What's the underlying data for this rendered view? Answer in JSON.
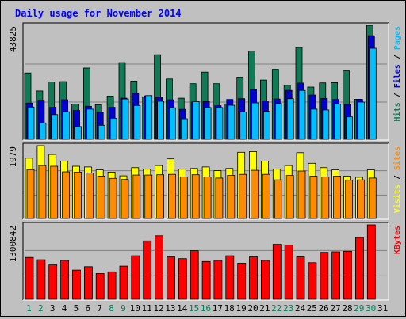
{
  "chart_data": {
    "type": "bar",
    "title": "Daily usage for November 2014",
    "categories": [
      "1",
      "2",
      "3",
      "4",
      "5",
      "6",
      "7",
      "8",
      "9",
      "10",
      "11",
      "12",
      "13",
      "14",
      "15",
      "16",
      "17",
      "18",
      "19",
      "20",
      "21",
      "22",
      "23",
      "24",
      "25",
      "26",
      "27",
      "28",
      "29",
      "30",
      "31"
    ],
    "weekend_days": [
      "1",
      "2",
      "8",
      "9",
      "15",
      "16",
      "22",
      "23",
      "29",
      "30"
    ],
    "panels": [
      {
        "id": "hits",
        "max_label": "43825",
        "ylim": [
          0,
          43825
        ],
        "series_labels": [
          "Pages",
          "Files",
          "Hits"
        ],
        "series": [
          {
            "name": "Hits",
            "color": "#0f7a55",
            "values": [
              25500,
              18600,
              22100,
              22200,
              13500,
              27400,
              13300,
              16600,
              29500,
              22400,
              16300,
              32500,
              23200,
              15800,
              21400,
              25800,
              21400,
              13600,
              23900,
              33900,
              22800,
              26900,
              20800,
              35300,
              20100,
              21700,
              21800,
              26300,
              15400,
              43800,
              0
            ]
          },
          {
            "name": "Files",
            "color": "#0000d0",
            "values": [
              13900,
              15000,
              12300,
              15200,
              11100,
              12700,
              10400,
              12300,
              15800,
              17700,
              16700,
              16300,
              15200,
              11500,
              14300,
              14500,
              12900,
              15300,
              15600,
              19100,
              14800,
              15500,
              18800,
              21600,
              17000,
              15700,
              15300,
              13400,
              15300,
              39800,
              0
            ]
          },
          {
            "name": "Pages",
            "color": "#00bfff",
            "values": [
              12400,
              6300,
              9500,
              10600,
              4900,
              11600,
              5400,
              8100,
              15500,
              13000,
              16800,
              14600,
              12100,
              7900,
              14500,
              12200,
              12200,
              13100,
              10500,
              14000,
              10700,
              13700,
              15600,
              18800,
              11600,
              11300,
              13500,
              8600,
              14300,
              35000,
              0
            ]
          }
        ]
      },
      {
        "id": "visits",
        "max_label": "1979",
        "ylim": [
          0,
          1979
        ],
        "series_labels": [
          "Sites",
          "Visits"
        ],
        "series": [
          {
            "name": "Visits",
            "color": "#ffff00",
            "values": [
              1640,
              1979,
              1740,
              1560,
              1420,
              1400,
              1320,
              1260,
              1160,
              1380,
              1340,
              1440,
              1620,
              1340,
              1360,
              1400,
              1300,
              1360,
              1800,
              1820,
              1560,
              1340,
              1440,
              1790,
              1500,
              1380,
              1320,
              1150,
              1120,
              1320,
              0
            ]
          },
          {
            "name": "Sites",
            "color": "#ff8c00",
            "values": [
              1330,
              1440,
              1420,
              1270,
              1260,
              1240,
              1150,
              1090,
              1060,
              1180,
              1180,
              1190,
              1200,
              1130,
              1190,
              1130,
              1100,
              1170,
              1200,
              1310,
              1200,
              1050,
              1170,
              1290,
              1150,
              1130,
              1150,
              1040,
              1050,
              1100,
              0
            ]
          }
        ]
      },
      {
        "id": "kbytes",
        "max_label": "1300842",
        "ylim": [
          0,
          1300842
        ],
        "series_labels": [
          "KBytes"
        ],
        "series": [
          {
            "name": "KBytes",
            "color": "#ff0000",
            "values": [
              730000,
              690000,
              600000,
              680000,
              510000,
              570000,
              450000,
              480000,
              580000,
              760000,
              1020000,
              1110000,
              740000,
              710000,
              850000,
              660000,
              680000,
              760000,
              630000,
              740000,
              680000,
              960000,
              950000,
              740000,
              640000,
              820000,
              830000,
              840000,
              1080000,
              1300842,
              0
            ]
          }
        ]
      }
    ],
    "colors": {
      "background": "#c0c0c0",
      "plot": "#c0c0c0",
      "gridline": "#808080",
      "title_text": "#0000ff",
      "weekend_label": "#00805c",
      "weekday_label": "#000000"
    }
  }
}
